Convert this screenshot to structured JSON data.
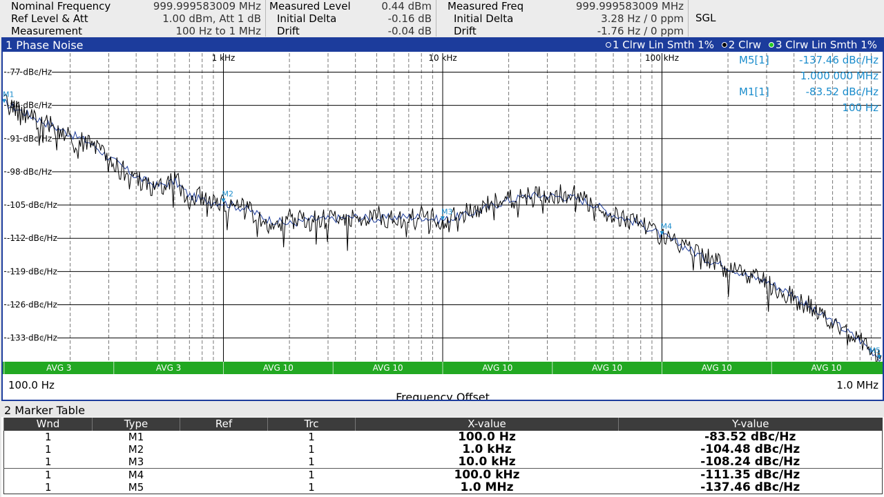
{
  "header": {
    "nominal_frequency_label": "Nominal Frequency",
    "nominal_frequency_value": "999.999583009 MHz",
    "ref_level_label": "Ref Level & Att",
    "ref_level_value": "1.00 dBm, Att 1 dB",
    "measurement_label": "Measurement",
    "measurement_value": "100 Hz to 1 MHz",
    "measured_level_label": "Measured Level",
    "measured_level_value": "0.44 dBm",
    "initial_delta_label": "Initial Delta",
    "initial_delta_level_value": "-0.16 dB",
    "drift_label": "Drift",
    "drift_level_value": "-0.04 dB",
    "measured_freq_label": "Measured Freq",
    "measured_freq_value": "999.999583009 MHz",
    "initial_delta_freq_value": "3.28 Hz / 0 ppm",
    "drift_freq_value": "-1.76 Hz / 0 ppm",
    "sweep_mode": "SGL"
  },
  "window1": {
    "title": "1 Phase Noise",
    "trace1_label": "1 Clrw Lin Smth 1%",
    "trace2_label": "2 Clrw",
    "trace3_label": "3 Clrw Lin Smth 1%",
    "trace1_color": "#1c3c9c",
    "trace2_color": "#000000",
    "trace3_color": "#22cc22",
    "start_label": "100.0 Hz",
    "stop_label": "1.0 MHz",
    "x_axis_title": "Frequency Offset",
    "marker_readouts": [
      {
        "name": "M5[1]",
        "level": "-137.46 dBc/Hz",
        "freq": "1.000 000 MHz"
      },
      {
        "name": "M1[1]",
        "level": "-83.52 dBc/Hz",
        "freq": "100 Hz"
      }
    ],
    "avg_labels": [
      "AVG 3",
      "AVG 3",
      "AVG 10",
      "AVG 10",
      "AVG 10",
      "AVG 10",
      "AVG 10",
      "AVG 10"
    ],
    "colors": {
      "grid": "#000000",
      "accent": "#1c3c9c",
      "marker": "#1a8ccc",
      "avg_bar": "#22a822"
    }
  },
  "chart_data": {
    "type": "line",
    "title": "1 Phase Noise",
    "xlabel": "Frequency Offset",
    "ylabel": "dBc/Hz",
    "x_scale": "log",
    "xlim": [
      100,
      1000000
    ],
    "ylim": [
      -138,
      -73
    ],
    "x_tick_labels": [
      "1 kHz",
      "10 kHz",
      "100 kHz"
    ],
    "x_ticks": [
      1000,
      10000,
      100000
    ],
    "y_tick_labels": [
      "-77 dBc/Hz",
      "-84 dBc/Hz",
      "-91 dBc/Hz",
      "-98 dBc/Hz",
      "-105 dBc/Hz",
      "-112 dBc/Hz",
      "-119 dBc/Hz",
      "-126 dBc/Hz",
      "-133 dBc/Hz"
    ],
    "y_ticks": [
      -77,
      -84,
      -91,
      -98,
      -105,
      -112,
      -119,
      -126,
      -133
    ],
    "grid": true,
    "series": [
      {
        "name": "1 Clrw Lin Smth 1%",
        "x": [
          100,
          130,
          160,
          200,
          250,
          300,
          400,
          500,
          600,
          700,
          800,
          1000,
          1300,
          1600,
          2000,
          2500,
          3000,
          4000,
          5000,
          6000,
          8000,
          10000,
          13000,
          16000,
          20000,
          25000,
          30000,
          40000,
          50000,
          60000,
          80000,
          100000,
          130000,
          160000,
          200000,
          250000,
          300000,
          400000,
          500000,
          600000,
          800000,
          1000000
        ],
        "y": [
          -83.5,
          -86,
          -88,
          -90,
          -92,
          -95,
          -99,
          -101,
          -100,
          -103,
          -104,
          -104.5,
          -106,
          -108,
          -109,
          -108,
          -108,
          -107.5,
          -108,
          -107.5,
          -107.5,
          -108.2,
          -107,
          -105.5,
          -104,
          -103,
          -103,
          -103.5,
          -105,
          -107,
          -109,
          -111.4,
          -114,
          -116.5,
          -118,
          -120,
          -121,
          -124,
          -127.5,
          -129.5,
          -133.5,
          -137.5
        ]
      },
      {
        "name": "2 Clrw",
        "x": [
          100,
          130,
          160,
          200,
          250,
          300,
          400,
          500,
          600,
          700,
          800,
          1000,
          1300,
          1600,
          2000,
          2500,
          3000,
          4000,
          5000,
          6000,
          8000,
          10000,
          13000,
          16000,
          20000,
          25000,
          30000,
          40000,
          50000,
          60000,
          80000,
          100000,
          130000,
          160000,
          200000,
          250000,
          300000,
          400000,
          500000,
          600000,
          800000,
          1000000
        ],
        "y": [
          -83.5,
          -86.5,
          -88,
          -91,
          -92,
          -96,
          -99.5,
          -102,
          -99,
          -104,
          -103,
          -105,
          -106,
          -109,
          -108,
          -108.5,
          -107.5,
          -108,
          -107,
          -108,
          -107,
          -108.5,
          -106.5,
          -105,
          -104,
          -103,
          -102.5,
          -103,
          -105,
          -107.5,
          -108.5,
          -111.5,
          -114.5,
          -116,
          -118.5,
          -120,
          -121.5,
          -124.5,
          -127,
          -130,
          -133,
          -137.5
        ]
      }
    ],
    "markers": [
      {
        "name": "M1",
        "x": 100,
        "y": -83.52,
        "x_label": "100.0 Hz",
        "y_label": "-83.52 dBc/Hz"
      },
      {
        "name": "M2",
        "x": 1000,
        "y": -104.48,
        "x_label": "1.0 kHz",
        "y_label": "-104.48 dBc/Hz"
      },
      {
        "name": "M3",
        "x": 10000,
        "y": -108.24,
        "x_label": "10.0 kHz",
        "y_label": "-108.24 dBc/Hz"
      },
      {
        "name": "M4",
        "x": 100000,
        "y": -111.35,
        "x_label": "100.0 kHz",
        "y_label": "-111.35 dBc/Hz"
      },
      {
        "name": "M5",
        "x": 1000000,
        "y": -137.46,
        "x_label": "1.0 MHz",
        "y_label": "-137.46 dBc/Hz"
      }
    ]
  },
  "marker_table": {
    "title": "2 Marker Table",
    "columns": [
      "Wnd",
      "Type",
      "Ref",
      "Trc",
      "X-value",
      "Y-value"
    ],
    "rows": [
      {
        "wnd": "1",
        "type": "M1",
        "ref": "",
        "trc": "1",
        "x": "100.0 Hz",
        "y": "-83.52 dBc/Hz"
      },
      {
        "wnd": "1",
        "type": "M2",
        "ref": "",
        "trc": "1",
        "x": "1.0 kHz",
        "y": "-104.48 dBc/Hz"
      },
      {
        "wnd": "1",
        "type": "M3",
        "ref": "",
        "trc": "1",
        "x": "10.0 kHz",
        "y": "-108.24 dBc/Hz"
      },
      {
        "wnd": "1",
        "type": "M4",
        "ref": "",
        "trc": "1",
        "x": "100.0 kHz",
        "y": "-111.35 dBc/Hz"
      },
      {
        "wnd": "1",
        "type": "M5",
        "ref": "",
        "trc": "1",
        "x": "1.0 MHz",
        "y": "-137.46 dBc/Hz"
      }
    ]
  }
}
